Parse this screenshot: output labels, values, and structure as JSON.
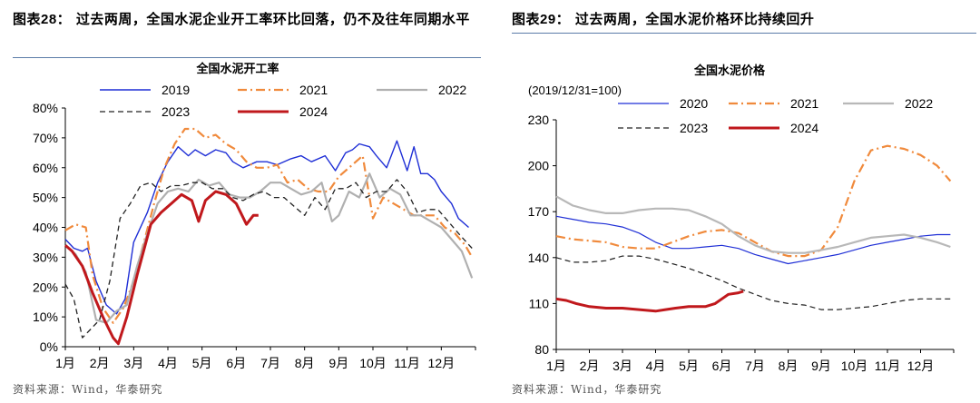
{
  "left_panel": {
    "figure_label": "图表28：",
    "figure_title": "过去两周，全国水泥企业开工率环比回落，仍不及往年同期水平",
    "source": "资料来源：Wind，华泰研究"
  },
  "right_panel": {
    "figure_label": "图表29：",
    "figure_title": "过去两周，全国水泥价格环比持续回升",
    "source": "资料来源：Wind，华泰研究"
  },
  "chart_data": [
    {
      "type": "line",
      "title": "全国水泥开工率",
      "xlabel": "",
      "ylabel": "",
      "categories": [
        "1月",
        "2月",
        "3月",
        "4月",
        "5月",
        "6月",
        "7月",
        "8月",
        "9月",
        "10月",
        "11月",
        "12月"
      ],
      "x_range": [
        1,
        13
      ],
      "ylim": [
        0,
        80
      ],
      "y_ticks": [
        0,
        10,
        20,
        30,
        40,
        50,
        60,
        70,
        80
      ],
      "y_tick_labels": [
        "0%",
        "10%",
        "20%",
        "30%",
        "40%",
        "50%",
        "60%",
        "70%",
        "80%"
      ],
      "legend_placement": "top",
      "series": [
        {
          "name": "2019",
          "color": "#1f2fd6",
          "dash": "solid",
          "width": 1.4,
          "x": [
            1,
            1.25,
            1.5,
            1.65,
            1.9,
            2.2,
            2.5,
            2.75,
            3.0,
            3.4,
            3.7,
            4.0,
            4.3,
            4.6,
            4.8,
            5.1,
            5.4,
            5.7,
            5.9,
            6.2,
            6.6,
            6.9,
            7.2,
            7.6,
            7.9,
            8.2,
            8.6,
            8.9,
            9.2,
            9.4,
            9.6,
            9.9,
            10.1,
            10.4,
            10.7,
            11.0,
            11.2,
            11.4,
            11.6,
            11.8,
            12.0,
            12.3,
            12.5,
            12.8
          ],
          "values": [
            36,
            33,
            32,
            33,
            22,
            14,
            11,
            16,
            35,
            45,
            55,
            62,
            67,
            64,
            66,
            64,
            66,
            65,
            62,
            60,
            62,
            62,
            61,
            63,
            64,
            62,
            64,
            59,
            65,
            66,
            68,
            67,
            64,
            60,
            69,
            59,
            67,
            58,
            58,
            56,
            52,
            48,
            43,
            40
          ]
        },
        {
          "name": "2021",
          "color": "#f08a3c",
          "dash": "dashdot",
          "width": 2.2,
          "x": [
            1,
            1.3,
            1.6,
            1.8,
            2.1,
            2.4,
            2.7,
            3.0,
            3.3,
            3.6,
            3.9,
            4.2,
            4.5,
            4.8,
            5.1,
            5.4,
            5.7,
            6.0,
            6.3,
            6.6,
            6.9,
            7.2,
            7.5,
            7.8,
            8.1,
            8.4,
            8.7,
            9.0,
            9.3,
            9.7,
            10.0,
            10.3,
            10.6,
            10.9,
            11.2,
            11.5,
            11.8,
            12.1,
            12.4,
            12.7,
            12.9
          ],
          "values": [
            39,
            41,
            40,
            24,
            13,
            8,
            13,
            22,
            35,
            48,
            60,
            68,
            73,
            73,
            70,
            71,
            68,
            66,
            62,
            60,
            60,
            61,
            55,
            56,
            53,
            52,
            52,
            57,
            60,
            64,
            43,
            50,
            48,
            46,
            44,
            44,
            44,
            40,
            38,
            34,
            30
          ]
        },
        {
          "name": "2022",
          "color": "#b0b0b0",
          "dash": "solid",
          "width": 2.2,
          "x": [
            1,
            1.3,
            1.6,
            1.9,
            2.2,
            2.5,
            2.8,
            3.1,
            3.4,
            3.7,
            4.0,
            4.3,
            4.6,
            4.9,
            5.2,
            5.5,
            5.8,
            6.1,
            6.4,
            6.7,
            7.0,
            7.3,
            7.6,
            7.9,
            8.2,
            8.5,
            8.8,
            9.0,
            9.3,
            9.6,
            9.9,
            10.2,
            10.5,
            10.8,
            11.1,
            11.4,
            11.7,
            12.0,
            12.3,
            12.6,
            12.9
          ],
          "values": [
            34,
            31,
            25,
            9,
            8,
            12,
            14,
            27,
            38,
            48,
            52,
            53,
            52,
            56,
            54,
            55,
            51,
            50,
            50,
            52,
            55,
            55,
            53,
            51,
            52,
            55,
            42,
            44,
            52,
            50,
            58,
            50,
            53,
            51,
            44,
            44,
            42,
            40,
            36,
            32,
            23
          ]
        },
        {
          "name": "2023",
          "color": "#222222",
          "dash": "dash",
          "width": 1.3,
          "x": [
            1,
            1.25,
            1.5,
            1.75,
            2.0,
            2.3,
            2.6,
            2.9,
            3.2,
            3.5,
            3.8,
            4.1,
            4.4,
            4.7,
            5.0,
            5.3,
            5.6,
            5.9,
            6.2,
            6.5,
            6.8,
            7.1,
            7.4,
            7.7,
            8.0,
            8.3,
            8.6,
            8.9,
            9.2,
            9.5,
            9.8,
            10.1,
            10.4,
            10.7,
            11.0,
            11.3,
            11.6,
            11.9,
            12.2,
            12.5,
            12.9
          ],
          "values": [
            21,
            16,
            3,
            6,
            9,
            22,
            43,
            48,
            54,
            55,
            52,
            54,
            54,
            55,
            55,
            53,
            53,
            50,
            49,
            51,
            52,
            50,
            50,
            47,
            44,
            50,
            46,
            53,
            53,
            55,
            50,
            52,
            52,
            56,
            52,
            45,
            46,
            46,
            42,
            38,
            33
          ]
        },
        {
          "name": "2024",
          "color": "#c0181c",
          "dash": "solid",
          "width": 3.0,
          "x": [
            1,
            1.2,
            1.5,
            1.8,
            2.1,
            2.4,
            2.55,
            2.8,
            3.1,
            3.5,
            3.8,
            4.1,
            4.4,
            4.7,
            4.9,
            5.1,
            5.4,
            5.7,
            6.0,
            6.3,
            6.5,
            6.65
          ],
          "values": [
            34,
            32,
            27,
            18,
            10,
            3,
            1,
            10,
            24,
            41,
            45,
            48,
            51,
            49,
            42,
            49,
            52,
            51,
            48,
            41,
            44,
            44
          ]
        }
      ]
    },
    {
      "type": "line",
      "title": "全国水泥价格",
      "subtitle": "(2019/12/31=100)",
      "xlabel": "",
      "ylabel": "",
      "categories": [
        "1月",
        "2月",
        "3月",
        "4月",
        "5月",
        "6月",
        "7月",
        "8月",
        "9月",
        "10月",
        "11月",
        "12月"
      ],
      "x_range": [
        1,
        13
      ],
      "ylim": [
        80,
        230
      ],
      "y_ticks": [
        80,
        110,
        140,
        170,
        200,
        230
      ],
      "legend_placement": "top",
      "series": [
        {
          "name": "2020",
          "color": "#1f2fd6",
          "dash": "solid",
          "width": 1.2,
          "x": [
            1,
            1.5,
            2.0,
            2.5,
            3.0,
            3.5,
            4.0,
            4.5,
            5.0,
            5.5,
            6.0,
            6.5,
            7.0,
            7.5,
            8.0,
            8.5,
            9.0,
            9.5,
            10.0,
            10.5,
            11.0,
            11.5,
            12.0,
            12.5,
            12.9
          ],
          "values": [
            167,
            165,
            163,
            162,
            160,
            156,
            150,
            146,
            146,
            147,
            148,
            146,
            142,
            139,
            136,
            138,
            140,
            142,
            145,
            148,
            150,
            152,
            154,
            155,
            155
          ]
        },
        {
          "name": "2021",
          "color": "#f08a3c",
          "dash": "dashdot",
          "width": 2.2,
          "x": [
            1,
            1.5,
            2.0,
            2.5,
            3.0,
            3.5,
            4.0,
            4.5,
            5.0,
            5.5,
            6.0,
            6.5,
            7.0,
            7.5,
            8.0,
            8.5,
            9.0,
            9.5,
            10.0,
            10.5,
            11.0,
            11.5,
            12.0,
            12.5,
            12.9
          ],
          "values": [
            154,
            152,
            151,
            150,
            147,
            146,
            146,
            150,
            154,
            157,
            158,
            156,
            150,
            144,
            141,
            141,
            145,
            160,
            190,
            210,
            213,
            211,
            207,
            200,
            190
          ]
        },
        {
          "name": "2022",
          "color": "#b8b8b8",
          "dash": "solid",
          "width": 2.2,
          "x": [
            1,
            1.5,
            2.0,
            2.5,
            3.0,
            3.5,
            4.0,
            4.5,
            5.0,
            5.5,
            6.0,
            6.5,
            7.0,
            7.5,
            8.0,
            8.5,
            9.0,
            9.5,
            10.0,
            10.5,
            11.0,
            11.5,
            12.0,
            12.5,
            12.9
          ],
          "values": [
            180,
            174,
            171,
            169,
            169,
            171,
            172,
            172,
            171,
            167,
            162,
            154,
            148,
            144,
            143,
            143,
            145,
            147,
            150,
            153,
            154,
            155,
            153,
            150,
            147
          ]
        },
        {
          "name": "2023",
          "color": "#222222",
          "dash": "dash",
          "width": 1.2,
          "x": [
            1,
            1.5,
            2.0,
            2.5,
            3.0,
            3.5,
            4.0,
            4.5,
            5.0,
            5.5,
            6.0,
            6.5,
            7.0,
            7.5,
            8.0,
            8.5,
            9.0,
            9.5,
            10.0,
            10.5,
            11.0,
            11.5,
            12.0,
            12.5,
            12.9
          ],
          "values": [
            140,
            137,
            137,
            138,
            141,
            141,
            139,
            136,
            133,
            129,
            125,
            120,
            116,
            112,
            110,
            109,
            106,
            106,
            107,
            108,
            110,
            112,
            113,
            113,
            113
          ]
        },
        {
          "name": "2024",
          "color": "#c0181c",
          "dash": "solid",
          "width": 3.0,
          "x": [
            1,
            1.3,
            1.6,
            2.0,
            2.5,
            3.0,
            3.5,
            4.0,
            4.3,
            4.6,
            5.0,
            5.5,
            5.8,
            6.0,
            6.2,
            6.5,
            6.65
          ],
          "values": [
            113,
            112,
            110,
            108,
            107,
            107,
            106,
            105,
            106,
            107,
            108,
            108,
            110,
            113,
            116,
            117,
            118
          ]
        }
      ]
    }
  ]
}
